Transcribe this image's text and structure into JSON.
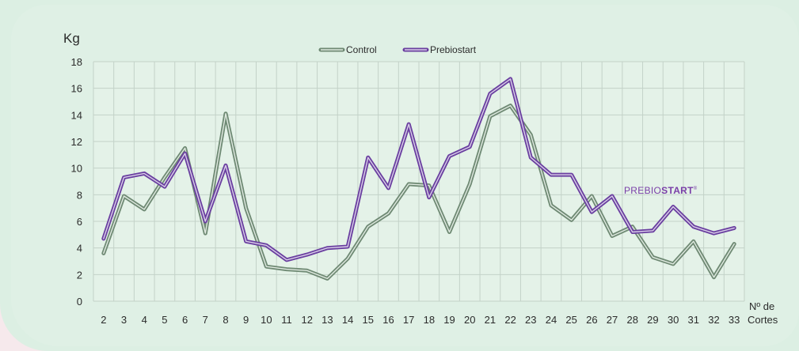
{
  "colors": {
    "control": "#6f8a74",
    "prebiostart": "#6a3fa0",
    "grid": "#c3d2c8",
    "plot_bg": "#e4f2e8",
    "brand": "#7a3fa8"
  },
  "brand": {
    "light": "PREBIO",
    "bold": "START",
    "mark": "®"
  },
  "chart_data": {
    "type": "line",
    "ylabel": "Kg",
    "xlabel_line1": "Nº de",
    "xlabel_line2": "Cortes",
    "ylim": [
      0,
      18
    ],
    "yticks": [
      0,
      2,
      4,
      6,
      8,
      10,
      12,
      14,
      16,
      18
    ],
    "grid": true,
    "legend_position": "top-center",
    "categories": [
      "2",
      "3",
      "4",
      "5",
      "6",
      "7",
      "8",
      "9",
      "10",
      "11",
      "12",
      "13",
      "14",
      "15",
      "16",
      "17",
      "18",
      "19",
      "20",
      "21",
      "22",
      "23",
      "24",
      "25",
      "26",
      "27",
      "28",
      "29",
      "30",
      "31",
      "32",
      "33"
    ],
    "series": [
      {
        "name": "Control",
        "values": [
          3.6,
          7.9,
          6.9,
          9.3,
          11.5,
          5.1,
          14.1,
          7.0,
          2.6,
          2.4,
          2.3,
          1.7,
          3.2,
          5.6,
          6.6,
          8.8,
          8.7,
          5.2,
          8.8,
          13.9,
          14.7,
          12.5,
          7.2,
          6.1,
          7.9,
          4.9,
          5.6,
          3.3,
          2.8,
          4.5,
          1.8,
          4.3
        ]
      },
      {
        "name": "Prebiostart",
        "values": [
          4.7,
          9.3,
          9.6,
          8.6,
          11.1,
          6.0,
          10.2,
          4.5,
          4.2,
          3.1,
          3.5,
          4.0,
          4.1,
          10.8,
          8.5,
          13.3,
          7.8,
          10.9,
          11.6,
          15.6,
          16.7,
          10.8,
          9.5,
          9.5,
          6.7,
          7.9,
          5.2,
          5.3,
          7.1,
          5.6,
          5.1,
          5.5
        ]
      }
    ]
  }
}
